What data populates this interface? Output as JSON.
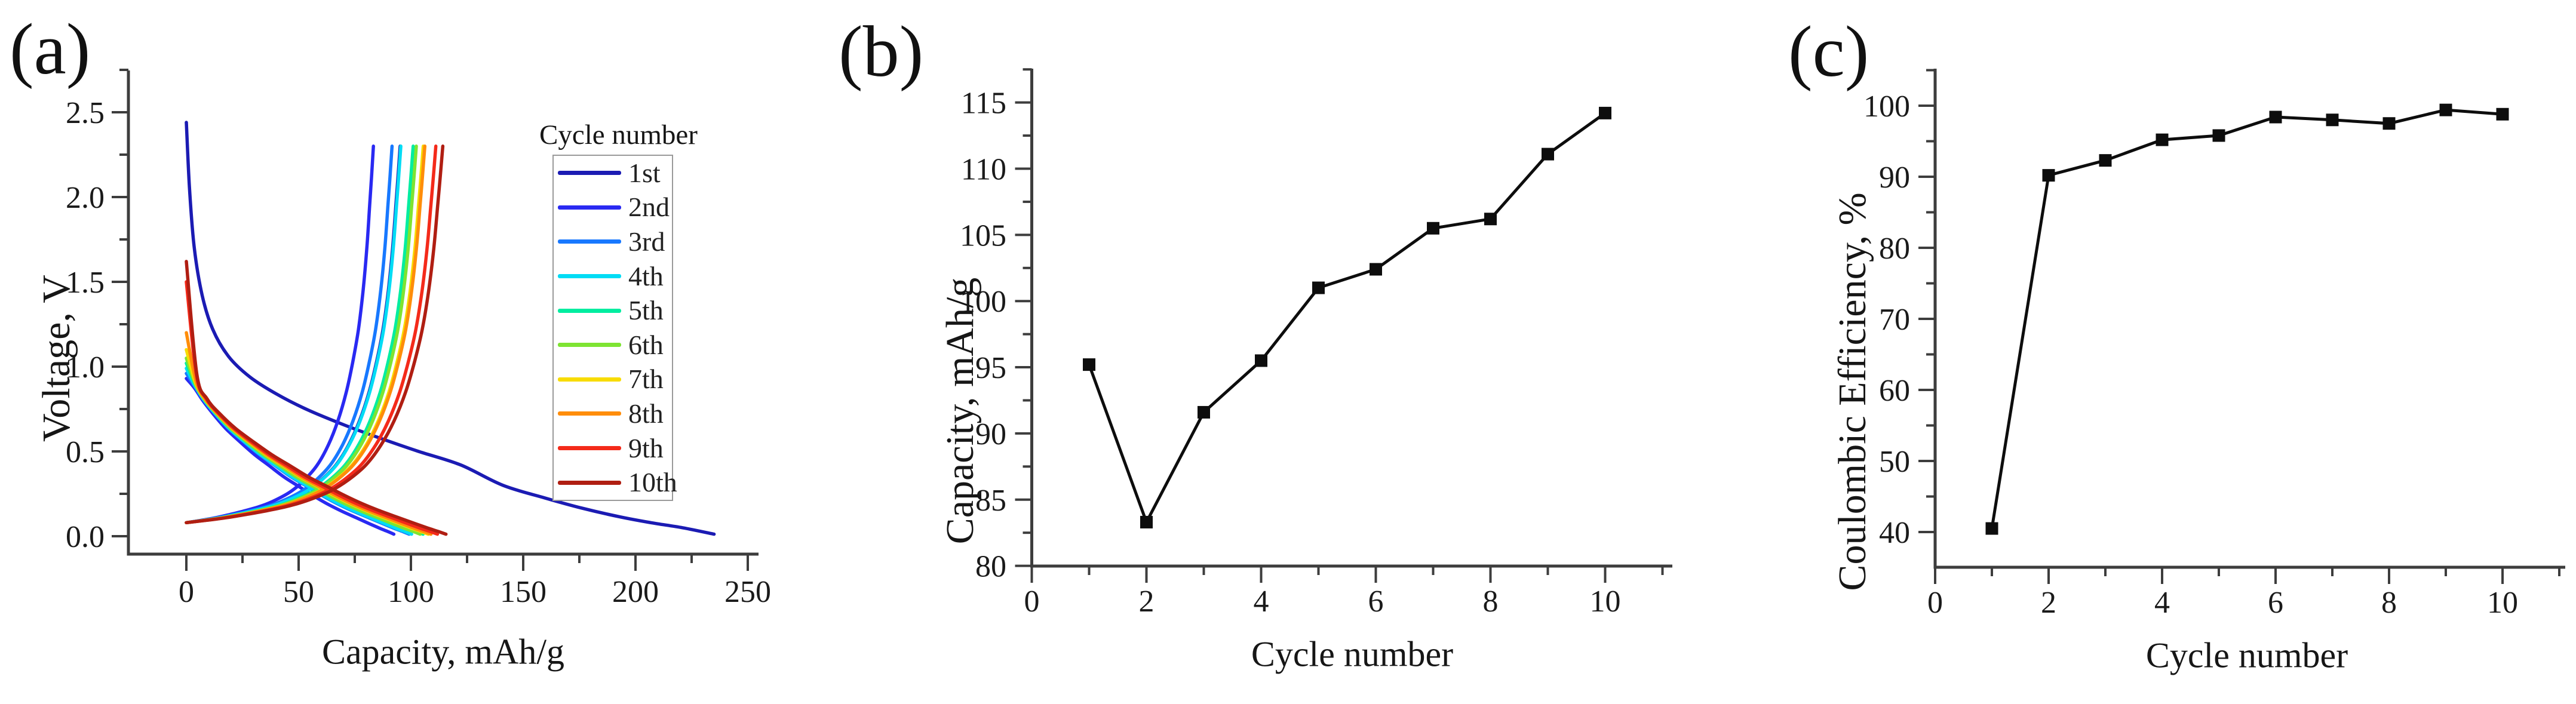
{
  "figure": {
    "background": "#ffffff",
    "axis_color": "#3d3d3d",
    "text_color": "#1a1a1a",
    "panels": [
      {
        "id": "a",
        "label": "(a)",
        "x_axis_title": "Capacity, mAh/g",
        "y_axis_title": "Voltage, V",
        "legend_title": "Cycle number"
      },
      {
        "id": "b",
        "label": "(b)",
        "x_axis_title": "Cycle number",
        "y_axis_title": "Capacity, mAh/g"
      },
      {
        "id": "c",
        "label": "(c)",
        "x_axis_title": "Cycle number",
        "y_axis_title": "Coulombic Efficiency, %"
      }
    ]
  },
  "chart_data": [
    {
      "type": "line",
      "panel": "a",
      "xlabel": "Capacity, mAh/g",
      "ylabel": "Voltage, V",
      "xlim": [
        -26,
        255
      ],
      "ylim": [
        -0.11,
        2.75
      ],
      "x_ticks": [
        0,
        50,
        100,
        150,
        200,
        250
      ],
      "y_ticks": [
        0.0,
        0.5,
        1.0,
        1.5,
        2.0,
        2.5
      ],
      "x_minor_ticks": [
        25,
        75,
        125,
        175,
        225
      ],
      "y_minor_ticks": [
        0.25,
        0.75,
        1.25,
        1.75,
        2.25,
        2.75
      ],
      "grid": false,
      "legend_title": "Cycle number",
      "legend_position": "upper right",
      "charge_cutoff_voltage": 2.3,
      "series": [
        {
          "label": "1st",
          "color": "#1b1bb3",
          "charge_capacity_mAh_g": 95.2,
          "discharge_capacity_mAh_g": 235.0,
          "discharge_start_voltage": 2.44
        },
        {
          "label": "2nd",
          "color": "#2929f2",
          "charge_capacity_mAh_g": 83.3,
          "discharge_capacity_mAh_g": 92.4,
          "discharge_start_voltage": 0.93
        },
        {
          "label": "3rd",
          "color": "#1778ff",
          "charge_capacity_mAh_g": 91.6,
          "discharge_capacity_mAh_g": 99.2,
          "discharge_start_voltage": 0.96
        },
        {
          "label": "4th",
          "color": "#00dcf5",
          "charge_capacity_mAh_g": 95.5,
          "discharge_capacity_mAh_g": 100.3,
          "discharge_start_voltage": 0.99
        },
        {
          "label": "5th",
          "color": "#00eda0",
          "charge_capacity_mAh_g": 101.0,
          "discharge_capacity_mAh_g": 105.4,
          "discharge_start_voltage": 1.02
        },
        {
          "label": "6th",
          "color": "#7ee432",
          "charge_capacity_mAh_g": 102.4,
          "discharge_capacity_mAh_g": 104.1,
          "discharge_start_voltage": 1.05
        },
        {
          "label": "7th",
          "color": "#f8dc00",
          "charge_capacity_mAh_g": 105.5,
          "discharge_capacity_mAh_g": 107.7,
          "discharge_start_voltage": 1.1
        },
        {
          "label": "8th",
          "color": "#ff8d0a",
          "charge_capacity_mAh_g": 106.2,
          "discharge_capacity_mAh_g": 108.9,
          "discharge_start_voltage": 1.2
        },
        {
          "label": "9th",
          "color": "#f42a1a",
          "charge_capacity_mAh_g": 111.1,
          "discharge_capacity_mAh_g": 111.8,
          "discharge_start_voltage": 1.5
        },
        {
          "label": "10th",
          "color": "#b01e12",
          "charge_capacity_mAh_g": 114.2,
          "discharge_capacity_mAh_g": 115.6,
          "discharge_start_voltage": 1.62
        }
      ],
      "charge_curve_shape": [
        [
          0,
          0.08
        ],
        [
          0.08,
          0.094
        ],
        [
          0.16,
          0.11
        ],
        [
          0.24,
          0.13
        ],
        [
          0.32,
          0.152
        ],
        [
          0.4,
          0.178
        ],
        [
          0.48,
          0.215
        ],
        [
          0.56,
          0.265
        ],
        [
          0.63,
          0.33
        ],
        [
          0.7,
          0.42
        ],
        [
          0.76,
          0.54
        ],
        [
          0.81,
          0.68
        ],
        [
          0.855,
          0.85
        ],
        [
          0.89,
          1.03
        ],
        [
          0.92,
          1.22
        ],
        [
          0.945,
          1.45
        ],
        [
          0.965,
          1.7
        ],
        [
          0.98,
          1.95
        ],
        [
          0.99,
          2.12
        ],
        [
          1,
          2.3
        ]
      ],
      "discharge_curve_shape": [
        [
          0,
          0.97
        ],
        [
          0.04,
          0.88
        ],
        [
          0.08,
          0.8
        ],
        [
          0.13,
          0.72
        ],
        [
          0.19,
          0.635
        ],
        [
          0.26,
          0.555
        ],
        [
          0.33,
          0.48
        ],
        [
          0.4,
          0.415
        ],
        [
          0.47,
          0.35
        ],
        [
          0.54,
          0.295
        ],
        [
          0.61,
          0.24
        ],
        [
          0.68,
          0.19
        ],
        [
          0.75,
          0.147
        ],
        [
          0.82,
          0.108
        ],
        [
          0.88,
          0.075
        ],
        [
          0.93,
          0.048
        ],
        [
          0.97,
          0.028
        ],
        [
          1,
          0.012
        ]
      ],
      "first_discharge_curve": [
        [
          0,
          2.44
        ],
        [
          0.006,
          2.05
        ],
        [
          0.015,
          1.7
        ],
        [
          0.03,
          1.42
        ],
        [
          0.05,
          1.22
        ],
        [
          0.08,
          1.06
        ],
        [
          0.12,
          0.94
        ],
        [
          0.17,
          0.84
        ],
        [
          0.23,
          0.745
        ],
        [
          0.3,
          0.655
        ],
        [
          0.37,
          0.575
        ],
        [
          0.44,
          0.5
        ],
        [
          0.52,
          0.42
        ],
        [
          0.6,
          0.3
        ],
        [
          0.68,
          0.225
        ],
        [
          0.75,
          0.165
        ],
        [
          0.82,
          0.115
        ],
        [
          0.88,
          0.08
        ],
        [
          0.94,
          0.05
        ],
        [
          1,
          0.012
        ]
      ]
    },
    {
      "type": "line",
      "panel": "b",
      "marker": "filled-square",
      "line_color": "#0d0d0d",
      "xlabel": "Cycle number",
      "ylabel": "Capacity, mAh/g",
      "xlim": [
        0,
        11.3
      ],
      "ylim": [
        80,
        117.6
      ],
      "x_ticks": [
        0,
        2,
        4,
        6,
        8,
        10
      ],
      "y_ticks": [
        80,
        85,
        90,
        95,
        100,
        105,
        110,
        115
      ],
      "x_minor_ticks": [
        1,
        3,
        5,
        7,
        9,
        11
      ],
      "y_minor_ticks": [
        82.5,
        87.5,
        92.5,
        97.5,
        102.5,
        107.5,
        112.5,
        117.5
      ],
      "grid": false,
      "x": [
        1,
        2,
        3,
        4,
        5,
        6,
        7,
        8,
        9,
        10
      ],
      "y": [
        95.2,
        83.3,
        91.6,
        95.5,
        101.0,
        102.4,
        105.5,
        106.2,
        111.1,
        114.2
      ]
    },
    {
      "type": "line",
      "panel": "c",
      "marker": "filled-square",
      "line_color": "#0d0d0d",
      "xlabel": "Cycle number",
      "ylabel": "Coulombic Efficiency, %",
      "xlim": [
        0,
        11.3
      ],
      "ylim": [
        35,
        105.2
      ],
      "x_ticks": [
        0,
        2,
        4,
        6,
        8,
        10
      ],
      "y_ticks": [
        40,
        50,
        60,
        70,
        80,
        90,
        100
      ],
      "x_minor_ticks": [
        1,
        3,
        5,
        7,
        9,
        11
      ],
      "y_minor_ticks": [
        45,
        55,
        65,
        75,
        85,
        95,
        105
      ],
      "grid": false,
      "x": [
        1,
        2,
        3,
        4,
        5,
        6,
        7,
        8,
        9,
        10
      ],
      "y": [
        40.5,
        90.2,
        92.3,
        95.2,
        95.8,
        98.4,
        98.0,
        97.5,
        99.4,
        98.8
      ]
    }
  ]
}
